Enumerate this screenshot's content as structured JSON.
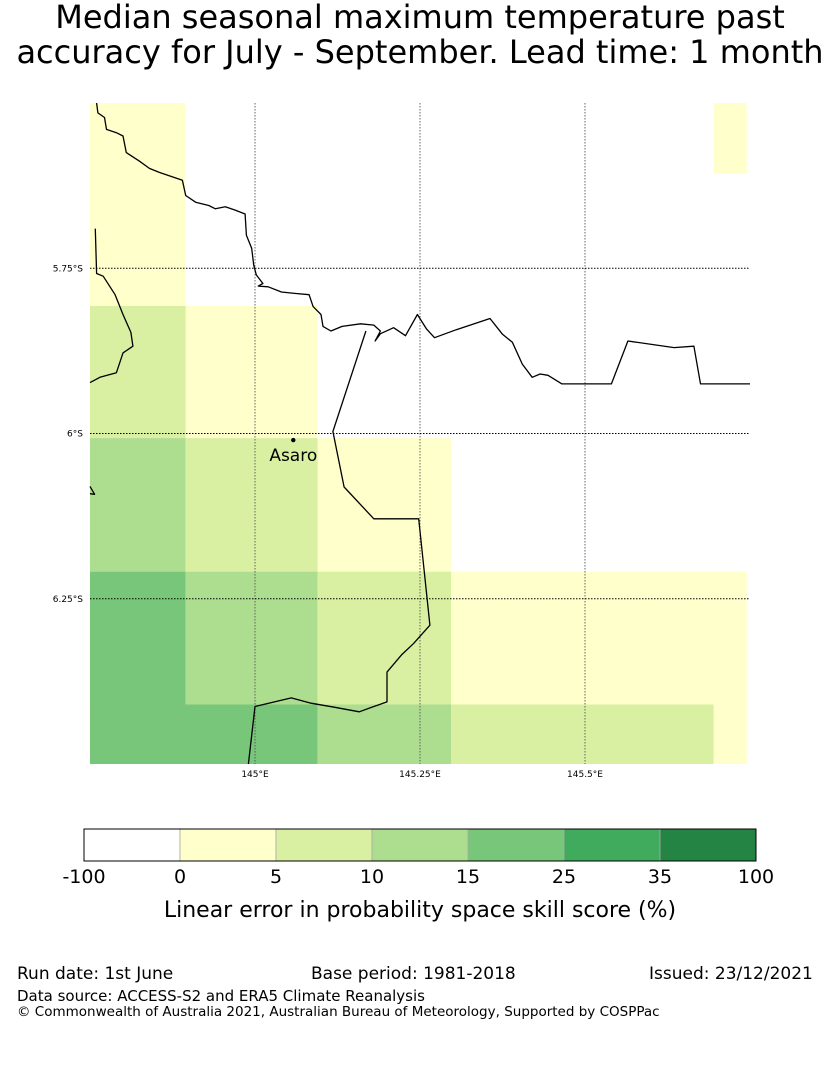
{
  "title": {
    "line1": "Median seasonal maximum temperature past",
    "line2": "accuracy for July - September. Lead time: 1 month"
  },
  "map": {
    "lon_range": [
      144.75,
      145.75
    ],
    "lat_range": [
      -6.5,
      -5.5
    ],
    "gridlines": {
      "lon": [
        145.0,
        145.25,
        145.5
      ],
      "lat": [
        -5.75,
        -6.0,
        -6.25
      ]
    },
    "lon_labels": [
      "145°E",
      "145.25°E",
      "145.5°E"
    ],
    "lat_labels": [
      "5.75°S",
      "6°S",
      "6.25°S"
    ],
    "place": {
      "name": "Asaro",
      "lon": 145.058,
      "lat": -6.01
    },
    "cells": [
      {
        "lon_min": 144.75,
        "lon_max": 144.895,
        "lat_min": -5.807,
        "lat_max": -5.5,
        "class": 1
      },
      {
        "lon_min": 145.695,
        "lon_max": 145.745,
        "lat_min": -5.607,
        "lat_max": -5.5,
        "class": 1
      },
      {
        "lon_min": 144.75,
        "lon_max": 144.895,
        "lat_min": -6.007,
        "lat_max": -5.807,
        "class": 2
      },
      {
        "lon_min": 144.895,
        "lon_max": 145.095,
        "lat_min": -6.007,
        "lat_max": -5.807,
        "class": 1
      },
      {
        "lon_min": 144.75,
        "lon_max": 144.895,
        "lat_min": -6.209,
        "lat_max": -6.007,
        "class": 3
      },
      {
        "lon_min": 144.895,
        "lon_max": 145.095,
        "lat_min": -6.209,
        "lat_max": -6.007,
        "class": 2
      },
      {
        "lon_min": 145.095,
        "lon_max": 145.297,
        "lat_min": -6.209,
        "lat_max": -6.007,
        "class": 1
      },
      {
        "lon_min": 144.75,
        "lon_max": 144.895,
        "lat_min": -6.41,
        "lat_max": -6.209,
        "class": 4
      },
      {
        "lon_min": 144.895,
        "lon_max": 145.095,
        "lat_min": -6.41,
        "lat_max": -6.209,
        "class": 3
      },
      {
        "lon_min": 145.095,
        "lon_max": 145.297,
        "lat_min": -6.41,
        "lat_max": -6.209,
        "class": 2
      },
      {
        "lon_min": 145.297,
        "lon_max": 145.745,
        "lat_min": -6.41,
        "lat_max": -6.209,
        "class": 1
      },
      {
        "lon_min": 144.75,
        "lon_max": 145.095,
        "lat_min": -6.5,
        "lat_max": -6.41,
        "class": 4
      },
      {
        "lon_min": 145.095,
        "lon_max": 145.297,
        "lat_min": -6.5,
        "lat_max": -6.41,
        "class": 3
      },
      {
        "lon_min": 145.297,
        "lon_max": 145.695,
        "lat_min": -6.5,
        "lat_max": -6.41,
        "class": 2
      },
      {
        "lon_min": 145.695,
        "lon_max": 145.745,
        "lat_min": -6.5,
        "lat_max": -6.41,
        "class": 1
      }
    ],
    "boundary_polyline": [
      [
        144.76,
        -5.5
      ],
      [
        144.762,
        -5.515
      ],
      [
        144.772,
        -5.522
      ],
      [
        144.775,
        -5.54
      ],
      [
        144.79,
        -5.545
      ],
      [
        144.8,
        -5.55
      ],
      [
        144.805,
        -5.575
      ],
      [
        144.825,
        -5.588
      ],
      [
        144.84,
        -5.599
      ],
      [
        144.855,
        -5.605
      ],
      [
        144.89,
        -5.617
      ],
      [
        144.895,
        -5.64
      ],
      [
        144.91,
        -5.65
      ],
      [
        144.93,
        -5.655
      ],
      [
        144.94,
        -5.66
      ],
      [
        144.955,
        -5.657
      ],
      [
        144.97,
        -5.662
      ],
      [
        144.985,
        -5.668
      ],
      [
        144.987,
        -5.7
      ],
      [
        144.995,
        -5.72
      ],
      [
        144.998,
        -5.745
      ],
      [
        145.002,
        -5.76
      ],
      [
        145.012,
        -5.773
      ],
      [
        145.005,
        -5.777
      ],
      [
        145.02,
        -5.778
      ],
      [
        145.04,
        -5.786
      ],
      [
        145.06,
        -5.788
      ],
      [
        145.082,
        -5.79
      ],
      [
        145.088,
        -5.808
      ],
      [
        145.1,
        -5.82
      ],
      [
        145.103,
        -5.838
      ],
      [
        145.115,
        -5.845
      ],
      [
        145.132,
        -5.838
      ],
      [
        145.16,
        -5.834
      ],
      [
        145.18,
        -5.836
      ],
      [
        145.19,
        -5.845
      ],
      [
        145.182,
        -5.86
      ],
      [
        145.19,
        -5.849
      ],
      [
        145.21,
        -5.84
      ],
      [
        145.228,
        -5.852
      ],
      [
        145.246,
        -5.82
      ],
      [
        145.26,
        -5.842
      ],
      [
        145.272,
        -5.855
      ],
      [
        145.305,
        -5.843
      ],
      [
        145.356,
        -5.826
      ],
      [
        145.375,
        -5.85
      ],
      [
        145.39,
        -5.862
      ],
      [
        145.405,
        -5.895
      ],
      [
        145.42,
        -5.915
      ],
      [
        145.432,
        -5.91
      ],
      [
        145.444,
        -5.912
      ],
      [
        145.465,
        -5.925
      ],
      [
        145.484,
        -5.925
      ],
      [
        145.54,
        -5.925
      ],
      [
        145.565,
        -5.86
      ],
      [
        145.635,
        -5.87
      ],
      [
        145.665,
        -5.868
      ],
      [
        145.675,
        -5.925
      ],
      [
        145.75,
        -5.925
      ]
    ],
    "boundary_polyline_2": [
      [
        145.168,
        -5.845
      ],
      [
        145.118,
        -5.997
      ],
      [
        145.135,
        -6.081
      ],
      [
        145.18,
        -6.129
      ],
      [
        145.248,
        -6.129
      ],
      [
        145.265,
        -6.29
      ],
      [
        145.24,
        -6.318
      ],
      [
        145.222,
        -6.335
      ],
      [
        145.2,
        -6.361
      ],
      [
        145.2,
        -6.406
      ],
      [
        145.18,
        -6.413
      ],
      [
        145.158,
        -6.421
      ],
      [
        145.12,
        -6.414
      ],
      [
        145.085,
        -6.408
      ],
      [
        145.055,
        -6.4
      ],
      [
        145.0,
        -6.413
      ],
      [
        144.99,
        -6.5
      ]
    ],
    "boundary_polyline_3": [
      [
        144.75,
        -5.923
      ],
      [
        144.765,
        -5.915
      ],
      [
        144.79,
        -5.908
      ],
      [
        144.8,
        -5.878
      ],
      [
        144.815,
        -5.868
      ],
      [
        144.812,
        -5.847
      ],
      [
        144.8,
        -5.82
      ],
      [
        144.788,
        -5.79
      ],
      [
        144.77,
        -5.762
      ],
      [
        144.76,
        -5.758
      ],
      [
        144.758,
        -5.69
      ]
    ],
    "boundary_polyline_4": [
      [
        144.75,
        -6.08
      ],
      [
        144.757,
        -6.092
      ],
      [
        144.75,
        -6.091
      ]
    ]
  },
  "legend": {
    "colors": [
      "#ffffff",
      "#ffffcc",
      "#d9f0a3",
      "#addd8e",
      "#78c679",
      "#41ab5d",
      "#238443"
    ],
    "ticks": [
      "-100",
      "0",
      "5",
      "10",
      "15",
      "25",
      "35",
      "100"
    ],
    "label": "Linear error in probability space skill score (%)"
  },
  "footer": {
    "run_date": "Run date: 1st June",
    "base_period": "Base period: 1981-2018",
    "issued": "Issued: 23/12/2021",
    "data_source": "Data source: ACCESS-S2 and ERA5 Climate Reanalysis",
    "copyright": "© Commonwealth of Australia 2021, Australian Bureau of Meteorology, Supported by COSPPac"
  }
}
